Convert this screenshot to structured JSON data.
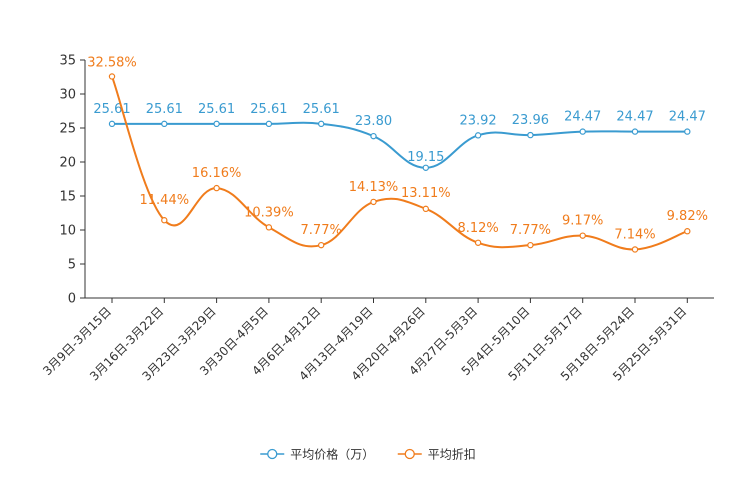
{
  "chart_data": {
    "type": "line",
    "title": "",
    "xlabel": "",
    "ylabel": "",
    "ylim": [
      0,
      35
    ],
    "yticks": [
      0,
      5,
      10,
      15,
      20,
      25,
      30,
      35
    ],
    "grid": false,
    "legend_position": "bottom-center",
    "categories": [
      "3月9日-3月15日",
      "3月16日-3月22日",
      "3月23日-3月29日",
      "3月30日-4月5日",
      "4月6日-4月12日",
      "4月13日-4月19日",
      "4月20日-4月26日",
      "4月27日-5月3日",
      "5月4日-5月10日",
      "5月11日-5月17日",
      "5月18日-5月24日",
      "5月25日-5月31日"
    ],
    "series": [
      {
        "name": "平均价格（万）",
        "color": "#3a9bd0",
        "values": [
          25.61,
          25.61,
          25.61,
          25.61,
          25.61,
          23.8,
          19.15,
          23.92,
          23.96,
          24.47,
          24.47,
          24.47
        ],
        "labels": [
          "25.61",
          "25.61",
          "25.61",
          "25.61",
          "25.61",
          "23.80",
          "19.15",
          "23.92",
          "23.96",
          "24.47",
          "24.47",
          "24.47"
        ]
      },
      {
        "name": "平均折扣",
        "color": "#f07c1c",
        "values": [
          32.58,
          11.44,
          16.16,
          10.39,
          7.77,
          14.13,
          13.11,
          8.12,
          7.77,
          9.17,
          7.14,
          9.82
        ],
        "labels": [
          "32.58%",
          "11.44%",
          "16.16%",
          "10.39%",
          "7.77%",
          "14.13%",
          "13.11%",
          "8.12%",
          "7.77%",
          "9.17%",
          "7.14%",
          "9.82%"
        ]
      }
    ]
  }
}
